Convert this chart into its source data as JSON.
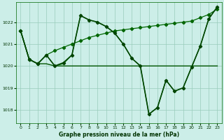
{
  "title": "Graphe pression niveau de la mer (hPa)",
  "background_color": "#cceee8",
  "grid_color": "#99ccbb",
  "ylim": [
    1017.4,
    1022.9
  ],
  "xlim": [
    -0.5,
    23.5
  ],
  "yticks": [
    1018,
    1019,
    1020,
    1021,
    1022
  ],
  "xticks": [
    0,
    1,
    2,
    3,
    4,
    5,
    6,
    7,
    8,
    9,
    10,
    11,
    12,
    13,
    14,
    15,
    16,
    17,
    18,
    19,
    20,
    21,
    22,
    23
  ],
  "line1": {
    "x": [
      0,
      1,
      2,
      3,
      4,
      5,
      6,
      7,
      8,
      9,
      10,
      11,
      12,
      13,
      14,
      15,
      16,
      17,
      18,
      19,
      20,
      21,
      22,
      23
    ],
    "y": [
      1021.6,
      1020.3,
      1020.1,
      1020.1,
      1020.0,
      1020.0,
      1020.0,
      1020.0,
      1020.0,
      1020.0,
      1020.0,
      1020.0,
      1020.0,
      1020.0,
      1020.0,
      1020.0,
      1020.0,
      1020.0,
      1020.0,
      1020.0,
      1020.0,
      1020.0,
      1020.0,
      1020.0
    ],
    "color": "#005500",
    "lw": 1.0,
    "marker": null
  },
  "line2": {
    "x": [
      0,
      1,
      2,
      3,
      4,
      5,
      6,
      7,
      8,
      9,
      10,
      11,
      12,
      13,
      14,
      15,
      16,
      17,
      18,
      19,
      20,
      21,
      22,
      23
    ],
    "y": [
      1021.6,
      1020.3,
      1020.1,
      1020.5,
      1020.7,
      1020.85,
      1021.0,
      1021.15,
      1021.3,
      1021.4,
      1021.5,
      1021.6,
      1021.65,
      1021.7,
      1021.75,
      1021.8,
      1021.85,
      1021.9,
      1021.95,
      1022.0,
      1022.05,
      1022.2,
      1022.35,
      1022.6
    ],
    "color": "#006600",
    "lw": 0.9,
    "marker": "D",
    "markersize": 2.2
  },
  "line3": {
    "x": [
      0,
      1,
      2,
      3,
      4,
      5,
      6,
      7,
      8,
      9,
      10,
      11,
      12,
      13,
      14,
      15,
      16,
      17,
      18,
      19,
      20,
      21,
      22,
      23
    ],
    "y": [
      1021.6,
      1020.3,
      1020.1,
      1020.5,
      1020.0,
      1020.15,
      1020.5,
      1022.3,
      1022.1,
      1022.0,
      1021.8,
      1021.5,
      1021.0,
      1020.35,
      1020.0,
      1017.8,
      1018.1,
      1019.35,
      1018.85,
      1019.0,
      1019.95,
      1020.9,
      1022.15,
      1022.7
    ],
    "color": "#004400",
    "lw": 1.2,
    "marker": "D",
    "markersize": 2.2
  },
  "line4": {
    "x": [
      0,
      1,
      2,
      3,
      4,
      5,
      6,
      7,
      8,
      9,
      10,
      11,
      12,
      13,
      14,
      15,
      16,
      17,
      18,
      19,
      20,
      21,
      22,
      23
    ],
    "y": [
      1021.6,
      1020.3,
      1020.1,
      1020.5,
      1020.0,
      1020.1,
      1020.5,
      1022.3,
      1022.1,
      1022.0,
      1021.8,
      1021.5,
      1021.0,
      1020.35,
      1020.0,
      1017.8,
      1018.1,
      1019.35,
      1018.85,
      1019.0,
      1019.95,
      1020.9,
      1022.15,
      1022.7
    ],
    "color": "#007700",
    "lw": 0.8,
    "marker": null
  }
}
